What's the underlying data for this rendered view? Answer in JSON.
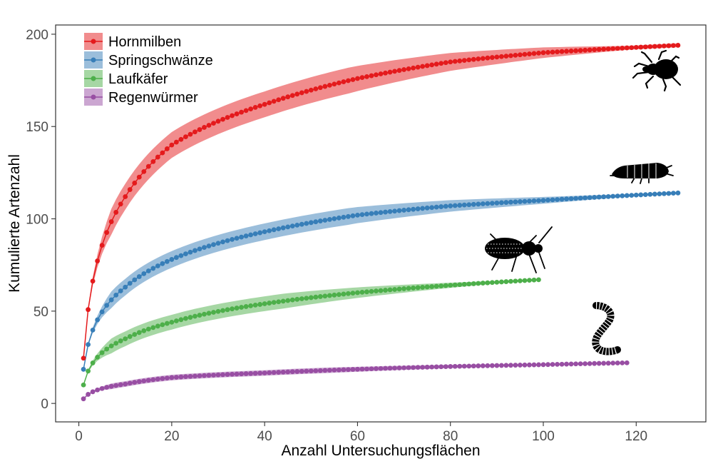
{
  "chart_data": {
    "type": "line",
    "xlabel": "Anzahl Untersuchungsflächen",
    "ylabel": "Kumulierte Artenzahl",
    "xlim": [
      -5,
      135
    ],
    "ylim": [
      -10,
      205
    ],
    "x_ticks": [
      0,
      20,
      40,
      60,
      80,
      100,
      120
    ],
    "y_ticks": [
      0,
      50,
      100,
      150,
      200
    ],
    "grid": false,
    "legend_position": "top-left",
    "series": [
      {
        "name": "Hornmilben",
        "color": "#E41A1C",
        "n_max": 129,
        "anchors": [
          [
            1,
            24.5
          ],
          [
            10,
            112
          ],
          [
            20,
            140
          ],
          [
            40,
            162
          ],
          [
            60,
            176
          ],
          [
            80,
            185
          ],
          [
            100,
            190
          ],
          [
            129,
            194
          ]
        ],
        "band_half_width": 7,
        "icon": "mite-icon"
      },
      {
        "name": "Springschwänze",
        "color": "#377EB8",
        "n_max": 129,
        "anchors": [
          [
            1,
            18.5
          ],
          [
            10,
            63
          ],
          [
            20,
            78
          ],
          [
            40,
            93
          ],
          [
            60,
            102
          ],
          [
            80,
            107
          ],
          [
            100,
            110
          ],
          [
            129,
            114
          ]
        ],
        "band_half_width": 4.5,
        "icon": "springtail-icon"
      },
      {
        "name": "Laufkäfer",
        "color": "#4DAF4A",
        "n_max": 99,
        "anchors": [
          [
            1,
            10
          ],
          [
            10,
            35
          ],
          [
            20,
            44
          ],
          [
            40,
            54
          ],
          [
            60,
            60
          ],
          [
            80,
            64
          ],
          [
            99,
            67
          ]
        ],
        "band_half_width": 4,
        "icon": "beetle-icon"
      },
      {
        "name": "Regenwürmer",
        "color": "#984EA3",
        "n_max": 118,
        "anchors": [
          [
            1,
            2.5
          ],
          [
            10,
            10.5
          ],
          [
            20,
            14
          ],
          [
            40,
            16.5
          ],
          [
            60,
            18.5
          ],
          [
            80,
            20
          ],
          [
            100,
            21
          ],
          [
            118,
            22
          ]
        ],
        "band_half_width": 1.5,
        "icon": "earthworm-icon"
      }
    ]
  }
}
